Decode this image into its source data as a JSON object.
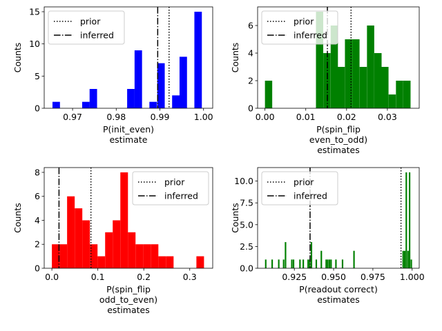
{
  "chart_data": [
    {
      "type": "bar",
      "xlabel": "P(init_even)\nestimate",
      "ylabel": "Counts",
      "color": "#0000ff",
      "xlim": [
        0.9635,
        1.0021
      ],
      "ylim": [
        0,
        15.75
      ],
      "xticks": [
        0.97,
        0.98,
        0.99,
        1.0
      ],
      "xtick_labels": [
        "0.97",
        "0.98",
        "0.99",
        "1.00"
      ],
      "yticks": [
        0,
        5,
        10,
        15
      ],
      "ytick_labels": [
        "0",
        "5",
        "10",
        "15"
      ],
      "bin_width": 0.00171,
      "bars": [
        {
          "x": 0.9654,
          "count": 1
        },
        {
          "x": 0.9722,
          "count": 1
        },
        {
          "x": 0.9739,
          "count": 3
        },
        {
          "x": 0.9825,
          "count": 3
        },
        {
          "x": 0.9842,
          "count": 9
        },
        {
          "x": 0.9876,
          "count": 1
        },
        {
          "x": 0.9894,
          "count": 7
        },
        {
          "x": 0.9928,
          "count": 2
        },
        {
          "x": 0.9945,
          "count": 8
        },
        {
          "x": 0.9979,
          "count": 15
        }
      ],
      "prior": 0.9921,
      "inferred": 0.9895,
      "legend": {
        "position": "upper-left",
        "entries": [
          "prior",
          "inferred"
        ]
      }
    },
    {
      "type": "bar",
      "xlabel": "P(spin_flip\neven_to_odd)\nestimates",
      "ylabel": "Counts",
      "color": "#008000",
      "xlim": [
        -0.0018,
        0.0378
      ],
      "ylim": [
        0,
        7.35
      ],
      "xticks": [
        0.0,
        0.01,
        0.02,
        0.03
      ],
      "xtick_labels": [
        "0.00",
        "0.01",
        "0.02",
        "0.03"
      ],
      "yticks": [
        0,
        2,
        4,
        6
      ],
      "ytick_labels": [
        "0",
        "2",
        "4",
        "6"
      ],
      "bin_width": 0.00178,
      "bars": [
        {
          "x": 0.0,
          "count": 2
        },
        {
          "x": 0.0125,
          "count": 7
        },
        {
          "x": 0.0143,
          "count": 4
        },
        {
          "x": 0.0161,
          "count": 6
        },
        {
          "x": 0.0178,
          "count": 3
        },
        {
          "x": 0.0196,
          "count": 5
        },
        {
          "x": 0.0214,
          "count": 5
        },
        {
          "x": 0.0232,
          "count": 3
        },
        {
          "x": 0.025,
          "count": 6
        },
        {
          "x": 0.0268,
          "count": 4
        },
        {
          "x": 0.0285,
          "count": 3
        },
        {
          "x": 0.0303,
          "count": 1
        },
        {
          "x": 0.0321,
          "count": 2
        },
        {
          "x": 0.0339,
          "count": 2
        }
      ],
      "prior": 0.0211,
      "inferred": 0.0153,
      "legend": {
        "position": "upper-left",
        "entries": [
          "prior",
          "inferred"
        ]
      }
    },
    {
      "type": "bar",
      "xlabel": "P(spin_flip\nodd_to_even)\nestimates",
      "ylabel": "Counts",
      "color": "#ff0000",
      "xlim": [
        -0.0167,
        0.35
      ],
      "ylim": [
        0,
        8.4
      ],
      "xticks": [
        0.0,
        0.1,
        0.2,
        0.3
      ],
      "xtick_labels": [
        "0.0",
        "0.1",
        "0.2",
        "0.3"
      ],
      "yticks": [
        0,
        2,
        4,
        6,
        8
      ],
      "ytick_labels": [
        "0",
        "2",
        "4",
        "6",
        "8"
      ],
      "bin_width": 0.01655,
      "bars": [
        {
          "x": 0.0,
          "count": 2
        },
        {
          "x": 0.0166,
          "count": 2
        },
        {
          "x": 0.0331,
          "count": 6
        },
        {
          "x": 0.0497,
          "count": 5
        },
        {
          "x": 0.0662,
          "count": 4
        },
        {
          "x": 0.0828,
          "count": 2
        },
        {
          "x": 0.0993,
          "count": 1
        },
        {
          "x": 0.1159,
          "count": 3
        },
        {
          "x": 0.1324,
          "count": 4
        },
        {
          "x": 0.149,
          "count": 8
        },
        {
          "x": 0.1655,
          "count": 3
        },
        {
          "x": 0.1821,
          "count": 2
        },
        {
          "x": 0.1986,
          "count": 2
        },
        {
          "x": 0.2152,
          "count": 2
        },
        {
          "x": 0.2317,
          "count": 1
        },
        {
          "x": 0.2483,
          "count": 1
        },
        {
          "x": 0.3145,
          "count": 1
        }
      ],
      "prior": 0.085,
      "inferred": 0.0155,
      "legend": {
        "position": "upper-right",
        "entries": [
          "prior",
          "inferred"
        ]
      }
    },
    {
      "type": "bar",
      "xlabel": "P(readout correct)\nestimates",
      "ylabel": "Counts",
      "color": "#008000",
      "xlim": [
        0.9016,
        1.0045
      ],
      "ylim": [
        0,
        11.55
      ],
      "xticks": [
        0.925,
        0.95,
        0.975,
        1.0
      ],
      "xtick_labels": [
        "0.925",
        "0.950",
        "0.975",
        "1.000"
      ],
      "yticks": [
        0.0,
        2.5,
        5.0,
        7.5,
        10.0
      ],
      "ytick_labels": [
        "0.0",
        "2.5",
        "5.0",
        "7.5",
        "10.0"
      ],
      "bin_width": 0.00096,
      "bars": [
        {
          "x": 0.9063,
          "count": 1
        },
        {
          "x": 0.9104,
          "count": 1
        },
        {
          "x": 0.9146,
          "count": 1
        },
        {
          "x": 0.9177,
          "count": 1
        },
        {
          "x": 0.9189,
          "count": 3
        },
        {
          "x": 0.9229,
          "count": 1
        },
        {
          "x": 0.924,
          "count": 1
        },
        {
          "x": 0.9281,
          "count": 1
        },
        {
          "x": 0.9302,
          "count": 1
        },
        {
          "x": 0.9333,
          "count": 1
        },
        {
          "x": 0.9343,
          "count": 1
        },
        {
          "x": 0.9354,
          "count": 3
        },
        {
          "x": 0.9385,
          "count": 1
        },
        {
          "x": 0.9417,
          "count": 2
        },
        {
          "x": 0.9448,
          "count": 1
        },
        {
          "x": 0.9458,
          "count": 1
        },
        {
          "x": 0.9469,
          "count": 1
        },
        {
          "x": 0.9479,
          "count": 1
        },
        {
          "x": 0.951,
          "count": 1
        },
        {
          "x": 0.9552,
          "count": 1
        },
        {
          "x": 0.9625,
          "count": 2
        },
        {
          "x": 0.9938,
          "count": 2
        },
        {
          "x": 0.9948,
          "count": 2
        },
        {
          "x": 0.9958,
          "count": 11
        },
        {
          "x": 0.9969,
          "count": 2
        },
        {
          "x": 0.9979,
          "count": 11
        },
        {
          "x": 0.999,
          "count": 1
        }
      ],
      "prior": 0.9929,
      "inferred": 0.935,
      "legend": {
        "position": "upper-left",
        "entries": [
          "prior",
          "inferred"
        ]
      }
    }
  ]
}
